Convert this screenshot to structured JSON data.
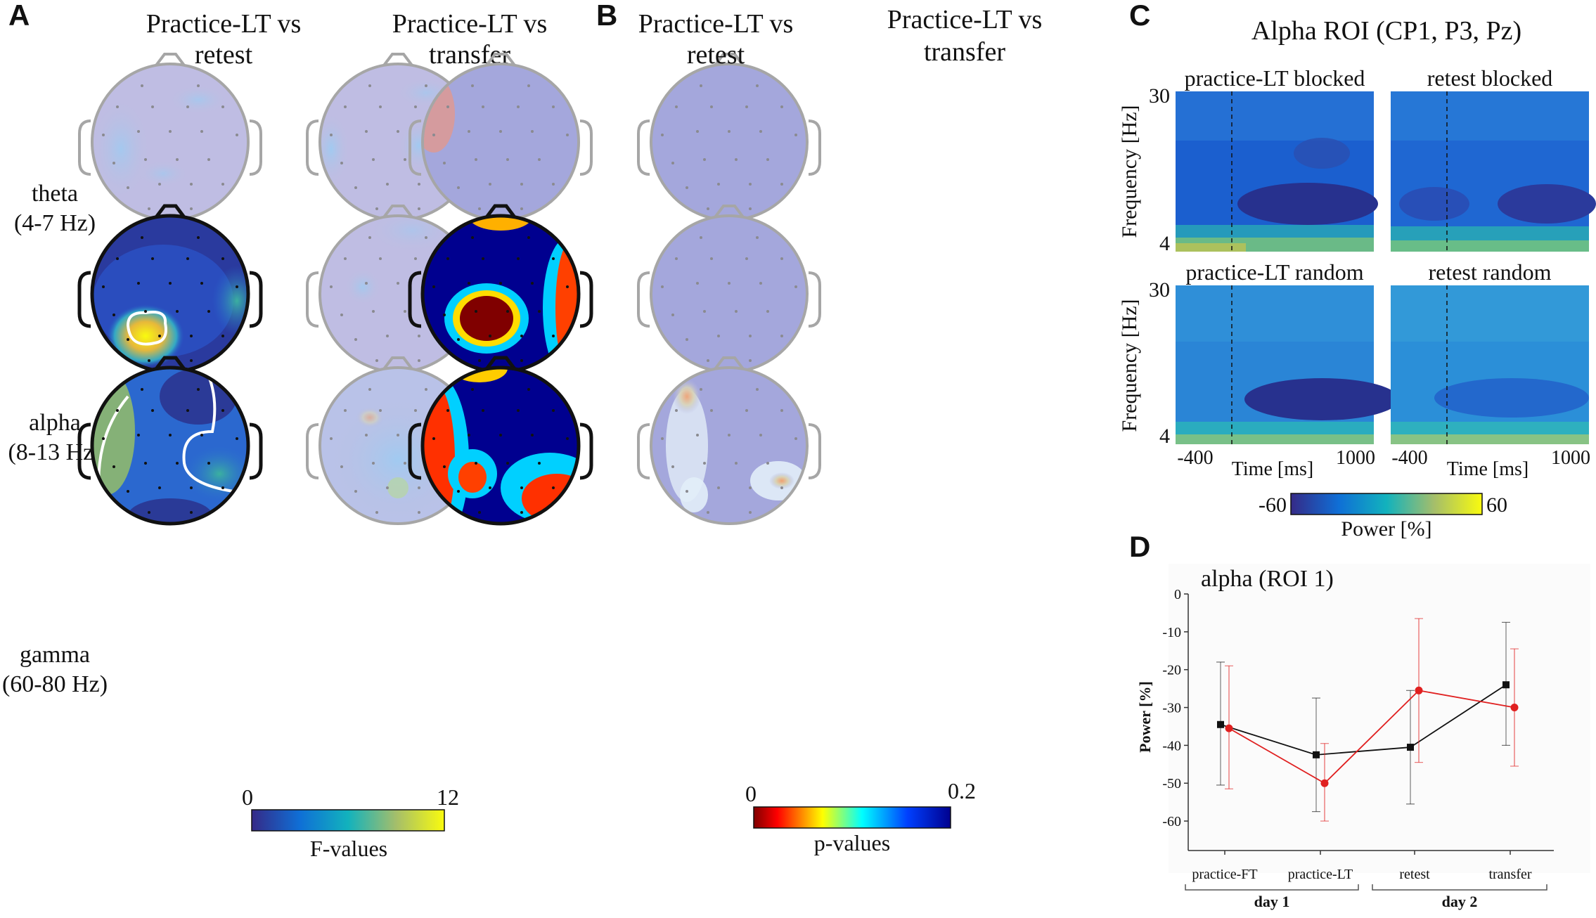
{
  "panels": {
    "A": {
      "letter": "A",
      "columns": [
        "Practice-LT vs\nretest",
        "Practice-LT vs\ntransfer"
      ],
      "rows": [
        {
          "band": "theta",
          "range": "(4-7 Hz)"
        },
        {
          "band": "alpha",
          "range": "(8-13 Hz)"
        },
        {
          "band": "gamma",
          "range": "(60-80 Hz)"
        }
      ],
      "colorbar": {
        "min": "0",
        "max": "12",
        "label": "F-values"
      }
    },
    "B": {
      "letter": "B",
      "columns": [
        "Practice-LT vs\nretest",
        "Practice-LT vs\ntransfer"
      ],
      "colorbar": {
        "min": "0",
        "max": "0.2",
        "label": "p-values"
      }
    },
    "C": {
      "letter": "C",
      "title": "Alpha ROI (CP1, P3, Pz)",
      "maps": [
        "practice-LT blocked",
        "retest blocked",
        "practice-LT random",
        "retest random"
      ],
      "ylabel": "Frequency [Hz]",
      "ytick_top": "30",
      "ytick_bottom": "4",
      "xtick_left": "-400",
      "xtick_right": "1000",
      "xlabel": "Time [ms]",
      "colorbar": {
        "min": "-60",
        "max": "60",
        "label": "Power [%]"
      }
    },
    "D": {
      "letter": "D",
      "title": "alpha (ROI 1)"
    }
  },
  "chart_data": {
    "type": "line",
    "title": "alpha (ROI 1)",
    "ylabel": "Power [%]",
    "ylim": [
      -65,
      0
    ],
    "yticks": [
      "0",
      "-10",
      "-20",
      "-30",
      "-40",
      "-50",
      "-60"
    ],
    "categories": [
      "practice-FT",
      "practice-LT",
      "retest",
      "transfer"
    ],
    "groups": [
      {
        "label": "day 1"
      },
      {
        "label": "day 2"
      }
    ],
    "series": [
      {
        "name": "black",
        "color": "#111111",
        "marker": "square",
        "values": [
          -34.5,
          -42.5,
          -40.5,
          -24
        ],
        "err_low": [
          -50.5,
          -57.5,
          -55.5,
          -40
        ],
        "err_high": [
          -18,
          -27.5,
          -25.5,
          -7.5
        ]
      },
      {
        "name": "red",
        "color": "#e02020",
        "marker": "circle",
        "values": [
          -35.5,
          -50,
          -25.5,
          -30
        ],
        "err_low": [
          -51.5,
          -60,
          -44.5,
          -45.5
        ],
        "err_high": [
          -19,
          -39.5,
          -6.5,
          -14.5
        ]
      }
    ]
  }
}
